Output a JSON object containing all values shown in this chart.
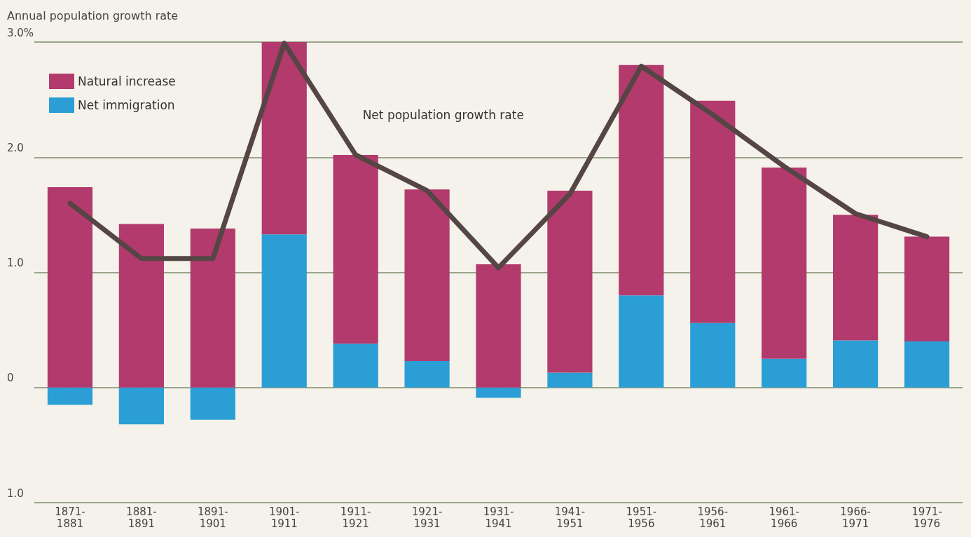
{
  "chart_data": {
    "type": "bar",
    "ylabel": "Annual population growth rate",
    "stacked": true,
    "categories": [
      "1871-1881",
      "1881-1891",
      "1891-1901",
      "1901-1911",
      "1911-1921",
      "1921-1931",
      "1931-1941",
      "1941-1951",
      "1951-1956",
      "1956-1961",
      "1961-1966",
      "1966-1971",
      "1971-1976"
    ],
    "series": [
      {
        "name": "Net immigration",
        "color": "#2b9ed6",
        "values": [
          -0.15,
          -0.32,
          -0.28,
          1.33,
          0.38,
          0.23,
          -0.09,
          0.13,
          0.8,
          0.56,
          0.25,
          0.41,
          0.4
        ]
      },
      {
        "name": "Natural increase",
        "color": "#b23a6c",
        "values": [
          1.74,
          1.42,
          1.38,
          1.67,
          1.64,
          1.49,
          1.07,
          1.58,
          2.0,
          1.93,
          1.66,
          1.09,
          0.91
        ]
      },
      {
        "name": "Net population growth rate",
        "type": "line",
        "color": "#554545",
        "values": [
          1.6,
          1.12,
          1.12,
          2.99,
          2.02,
          1.71,
          1.04,
          1.68,
          2.79,
          2.37,
          1.92,
          1.51,
          1.31
        ]
      }
    ],
    "ylim": [
      -1,
      3
    ],
    "yticks": [
      {
        "value": -1,
        "label": "1.0"
      },
      {
        "value": 0,
        "label": "0"
      },
      {
        "value": 1,
        "label": "1.0"
      },
      {
        "value": 2,
        "label": "2.0"
      },
      {
        "value": 3,
        "label": "3.0%"
      }
    ],
    "grid": "y",
    "legend": "top left",
    "marker": "none",
    "line_style": "solid"
  }
}
